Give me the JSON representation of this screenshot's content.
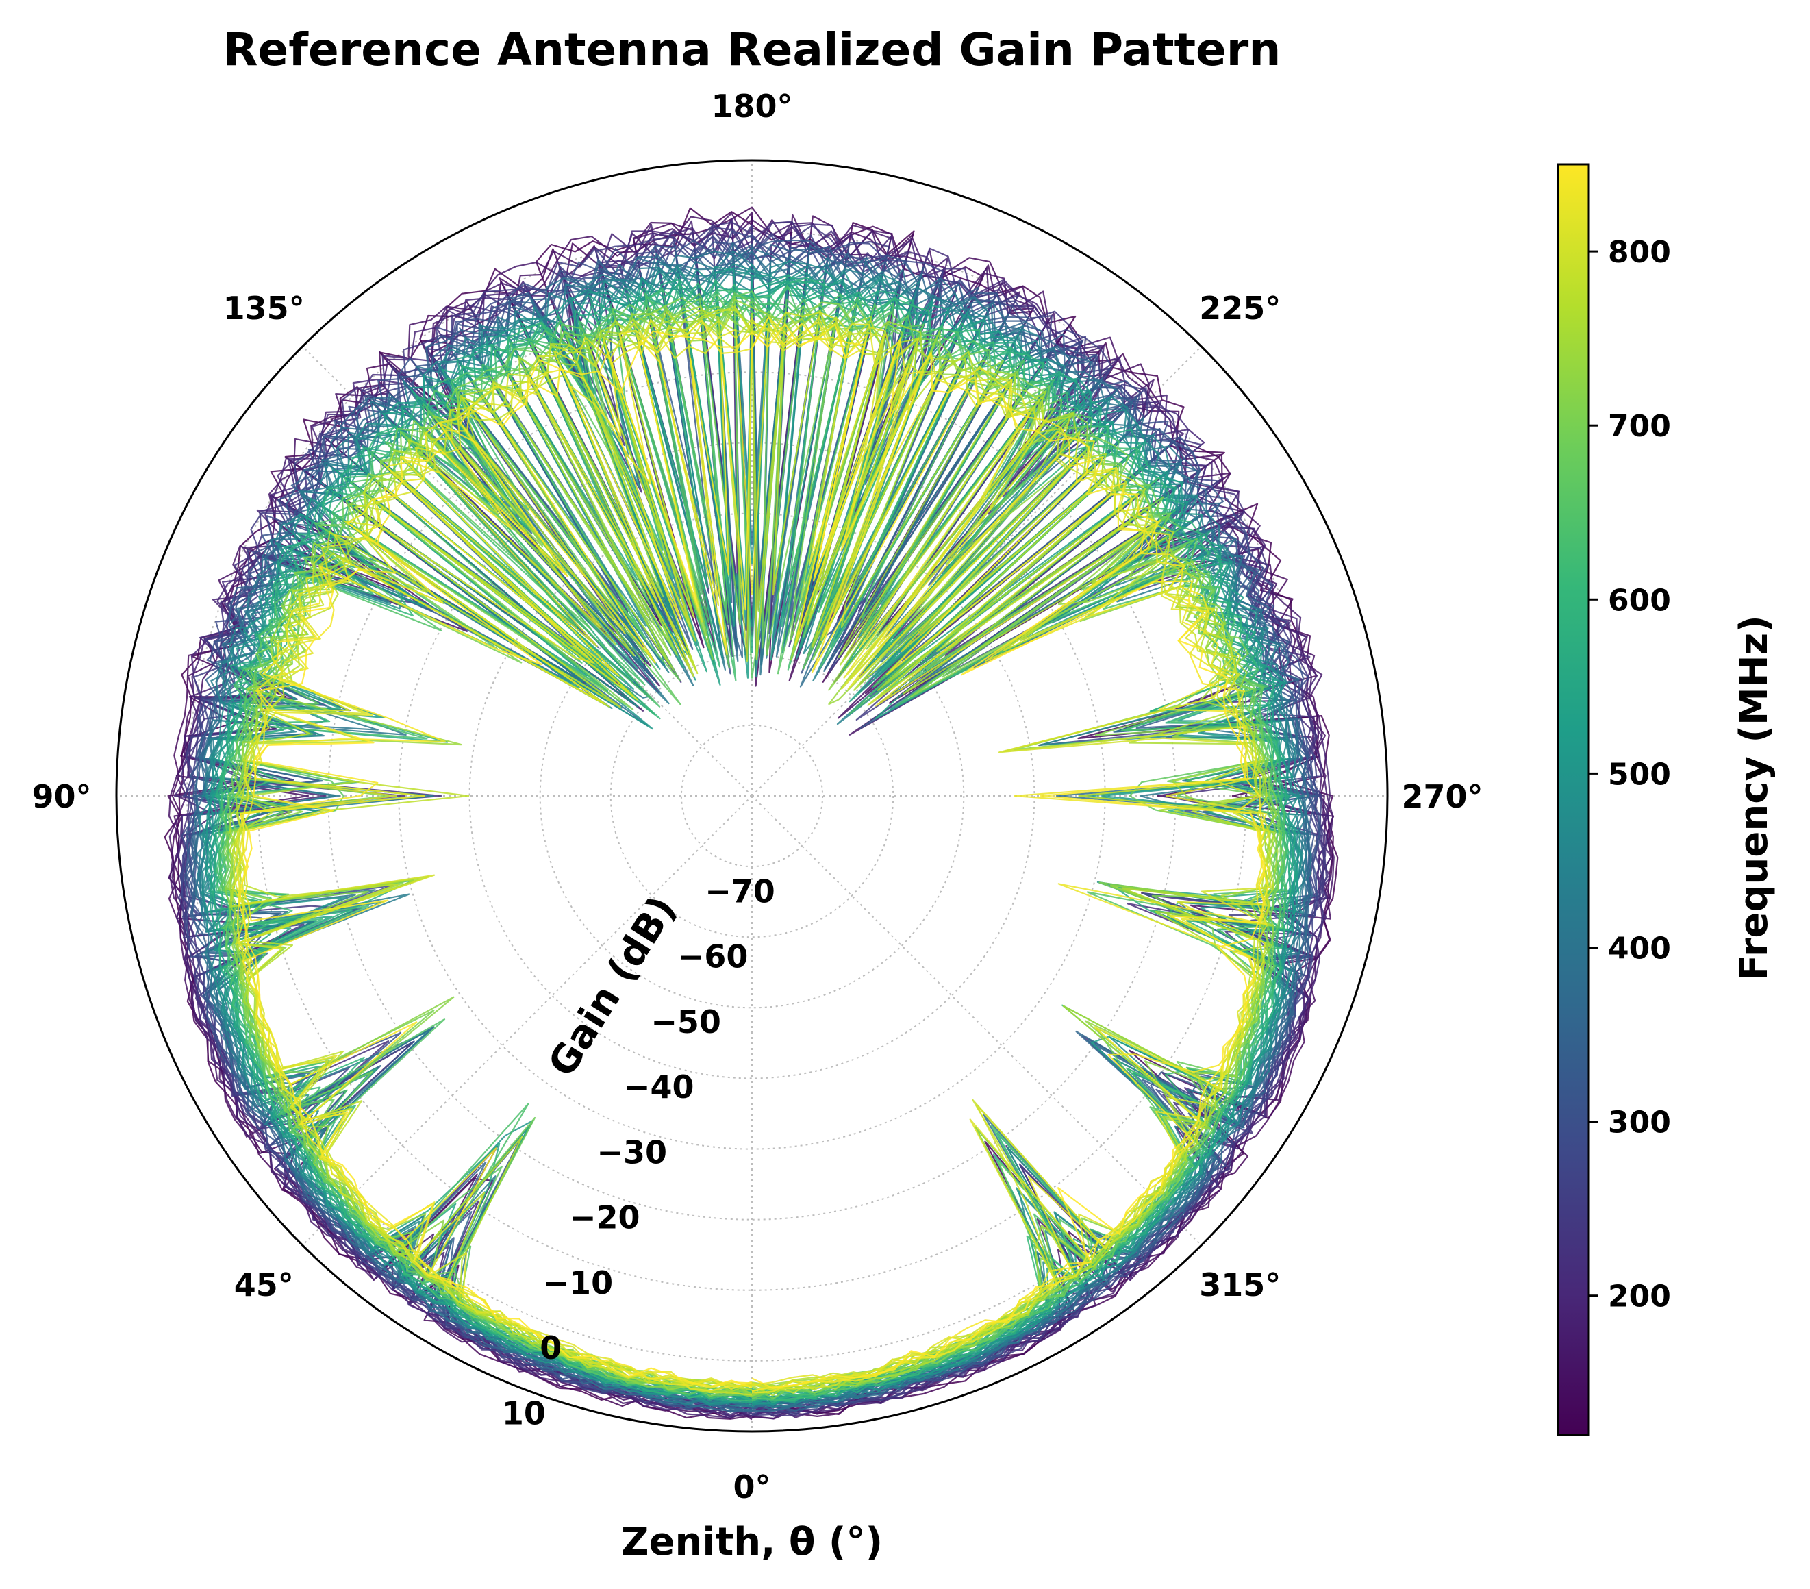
{
  "chart_data": {
    "type": "line",
    "projection": "polar",
    "title": "Reference Antenna Realized Gain Pattern",
    "xlabel": "Zenith, θ (°)",
    "ylabel": "Gain (dB)",
    "theta_zero_location": "bottom",
    "theta_direction": "clockwise",
    "theta_tick_labels": [
      "0°",
      "45°",
      "90°",
      "135°",
      "180°",
      "225°",
      "270°",
      "315°"
    ],
    "theta_ticks_deg": [
      0,
      45,
      90,
      135,
      180,
      225,
      270,
      315
    ],
    "r_tick_labels": [
      "−70",
      "−60",
      "−50",
      "−40",
      "−30",
      "−20",
      "−10",
      "0",
      "10"
    ],
    "r_ticks": [
      -70,
      -60,
      -50,
      -40,
      -30,
      -20,
      -10,
      0,
      10
    ],
    "r_lim": [
      -80,
      10
    ],
    "grid": true,
    "series_description": "Gain vs zenith angle, one curve per frequency, colored by frequency (viridis)",
    "frequency_range_mhz": [
      120,
      850
    ],
    "frequency_step_mhz": 10,
    "pattern_model": {
      "peak_gain_db": [
        7.5,
        3.5
      ],
      "main_lobe_ceiling_db": [
        5.5,
        -3.0
      ],
      "back_gain_db": [
        1.0,
        -15.0
      ],
      "null_angles_deg": [
        35,
        55,
        75,
        90,
        100,
        120,
        140,
        160
      ],
      "null_depth_db": -62
    },
    "colorbar": {
      "label": "Frequency (MHz)",
      "min": 120,
      "max": 850,
      "ticks": [
        200,
        300,
        400,
        500,
        600,
        700,
        800
      ],
      "tick_labels": [
        "200",
        "300",
        "400",
        "500",
        "600",
        "700",
        "800"
      ],
      "colormap": "viridis"
    }
  }
}
